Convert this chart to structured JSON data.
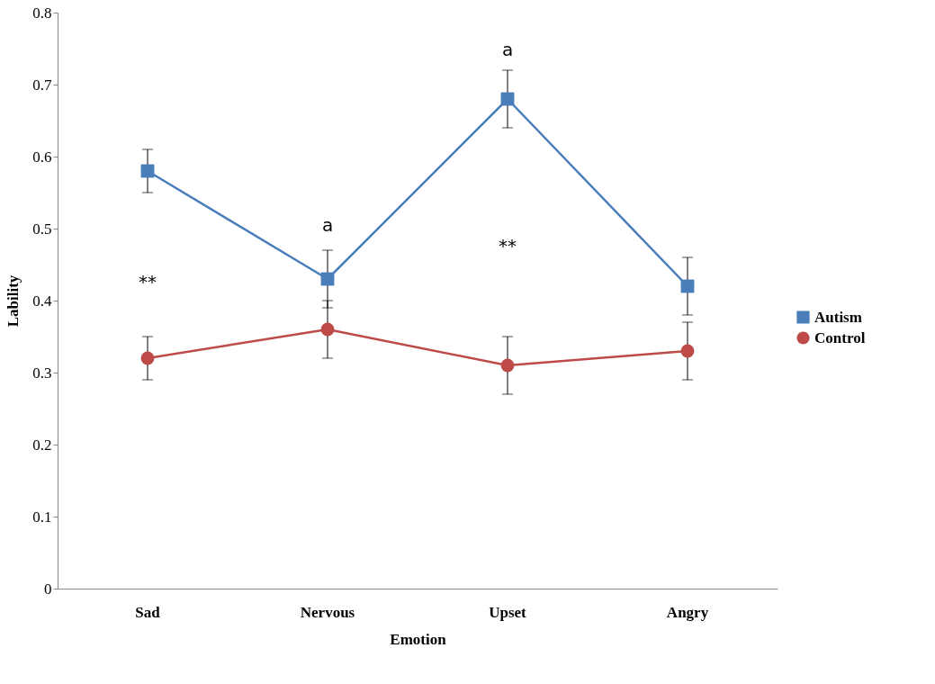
{
  "chart_data": {
    "type": "line",
    "xlabel": "Emotion",
    "ylabel": "Lability",
    "categories": [
      "Sad",
      "Nervous",
      "Upset",
      "Angry"
    ],
    "series": [
      {
        "name": "Autism",
        "color": "#4a7ebb",
        "marker": "square",
        "values": [
          0.58,
          0.43,
          0.68,
          0.42
        ],
        "errors": [
          0.03,
          0.04,
          0.04,
          0.04
        ]
      },
      {
        "name": "Control",
        "color": "#be4b48",
        "marker": "circle",
        "values": [
          0.32,
          0.36,
          0.31,
          0.33
        ],
        "errors": [
          0.03,
          0.04,
          0.04,
          0.04
        ]
      }
    ],
    "ylim": [
      0,
      0.8
    ],
    "yticks": [
      0,
      0.1,
      0.2,
      0.3,
      0.4,
      0.5,
      0.6,
      0.7,
      0.8
    ],
    "annotations": [
      "**",
      "a",
      "a",
      "**"
    ],
    "legend": "right",
    "grid": false
  }
}
